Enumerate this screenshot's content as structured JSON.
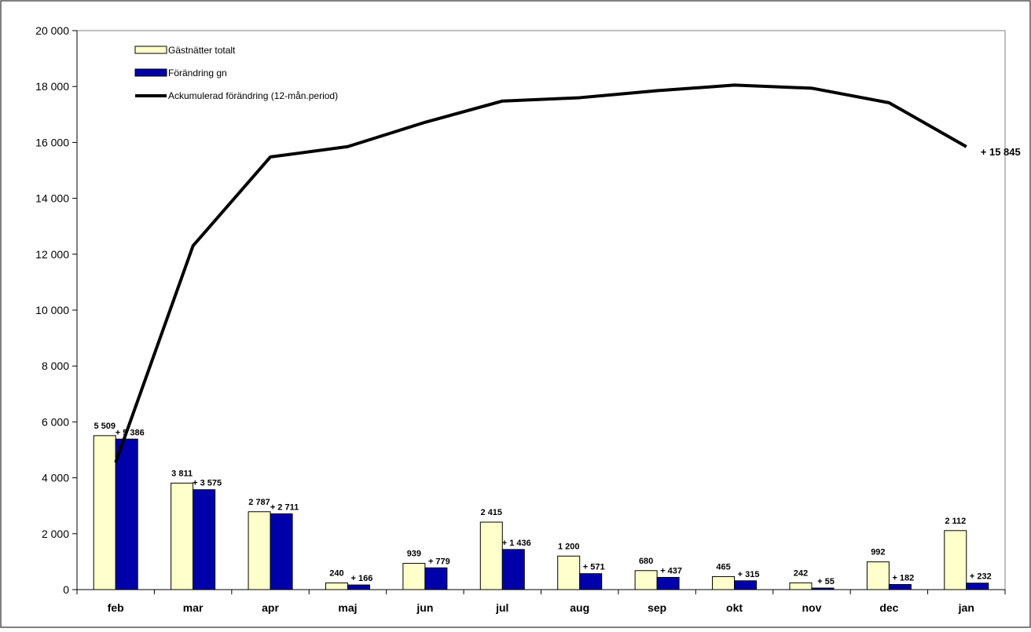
{
  "chart_data": {
    "type": "bar",
    "categories": [
      "feb",
      "mar",
      "apr",
      "maj",
      "jun",
      "jul",
      "aug",
      "sep",
      "okt",
      "nov",
      "dec",
      "jan"
    ],
    "series": [
      {
        "name": "Gästnätter totalt",
        "kind": "bar",
        "color": "#FFFFCC",
        "values": [
          5509,
          3811,
          2787,
          240,
          939,
          2415,
          1200,
          680,
          465,
          242,
          992,
          2112
        ],
        "labels": [
          "5 509",
          "3 811",
          "2 787",
          "240",
          "939",
          "2 415",
          "1 200",
          "680",
          "465",
          "242",
          "992",
          "2 112"
        ]
      },
      {
        "name": "Förändring gn",
        "kind": "bar",
        "color": "#0000AA",
        "values": [
          5386,
          3575,
          2711,
          166,
          779,
          1436,
          571,
          437,
          315,
          55,
          182,
          232
        ],
        "labels": [
          "+ 5 386",
          "+ 3 575",
          "+ 2 711",
          "+ 166",
          "+ 779",
          "+ 1 436",
          "+ 571",
          "+ 437",
          "+ 315",
          "+ 55",
          "+ 182",
          "+ 232"
        ]
      },
      {
        "name": "Ackumulerad förändring (12-mån.period)",
        "kind": "line",
        "color": "#000000",
        "values": [
          4550,
          12300,
          15480,
          15850,
          16720,
          17480,
          17600,
          17850,
          18050,
          17940,
          17420,
          15845
        ],
        "end_label": "+ 15 845"
      }
    ],
    "y_ticks": [
      0,
      2000,
      4000,
      6000,
      8000,
      10000,
      12000,
      14000,
      16000,
      18000,
      20000
    ],
    "y_tick_labels": [
      "0",
      "2 000",
      "4 000",
      "6 000",
      "8 000",
      "10 000",
      "12 000",
      "14 000",
      "16 000",
      "18 000",
      "20 000"
    ],
    "ylim": [
      0,
      20000
    ],
    "grid": false,
    "legend_position": "top-left",
    "title": "",
    "xlabel": "",
    "ylabel": ""
  }
}
